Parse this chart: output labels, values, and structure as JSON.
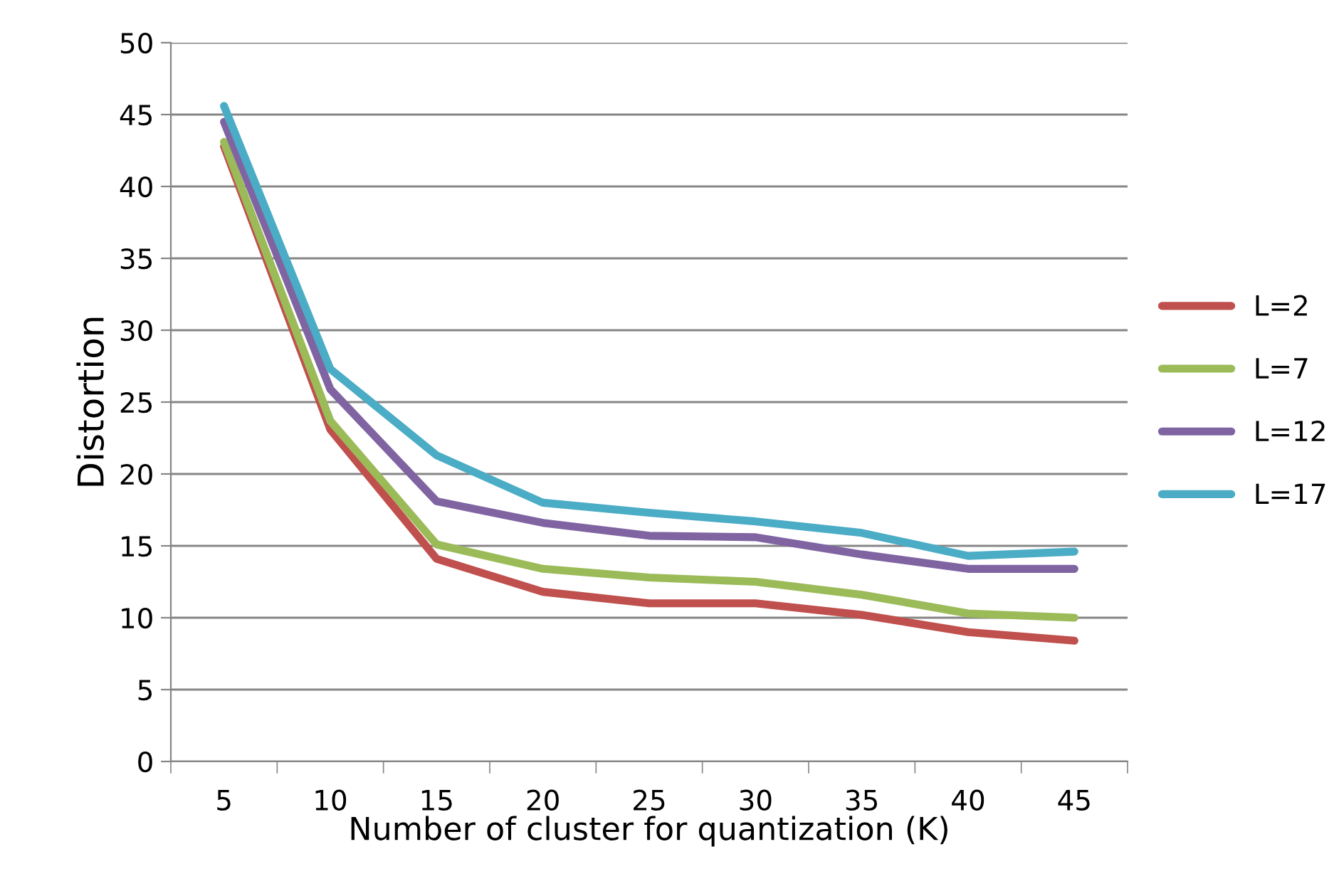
{
  "chart_data": {
    "type": "line",
    "xlabel": "Number of cluster for quantization (K)",
    "ylabel": "Distortion",
    "categories": [
      "5",
      "10",
      "15",
      "20",
      "25",
      "30",
      "35",
      "40",
      "45"
    ],
    "series": [
      {
        "name": "L=2",
        "color": "#c0504d",
        "values": [
          42.8,
          23.1,
          14.1,
          11.8,
          11.0,
          11.0,
          10.2,
          9.0,
          8.4
        ]
      },
      {
        "name": "L=7",
        "color": "#9bbb59",
        "values": [
          43.1,
          23.7,
          15.1,
          13.4,
          12.8,
          12.5,
          11.6,
          10.3,
          10.0
        ]
      },
      {
        "name": "L=12",
        "color": "#8064a2",
        "values": [
          44.5,
          25.9,
          18.1,
          16.6,
          15.7,
          15.6,
          14.4,
          13.4,
          13.4
        ]
      },
      {
        "name": "L=17",
        "color": "#4bacc6",
        "values": [
          45.6,
          27.3,
          21.3,
          18.0,
          17.3,
          16.7,
          15.9,
          14.3,
          14.6
        ]
      }
    ],
    "ylim": [
      0,
      50
    ],
    "yticks": [
      0,
      5,
      10,
      15,
      20,
      25,
      30,
      35,
      40,
      45,
      50
    ],
    "grid": "y",
    "legend": "right",
    "marker": "none",
    "line_style": "solid"
  }
}
